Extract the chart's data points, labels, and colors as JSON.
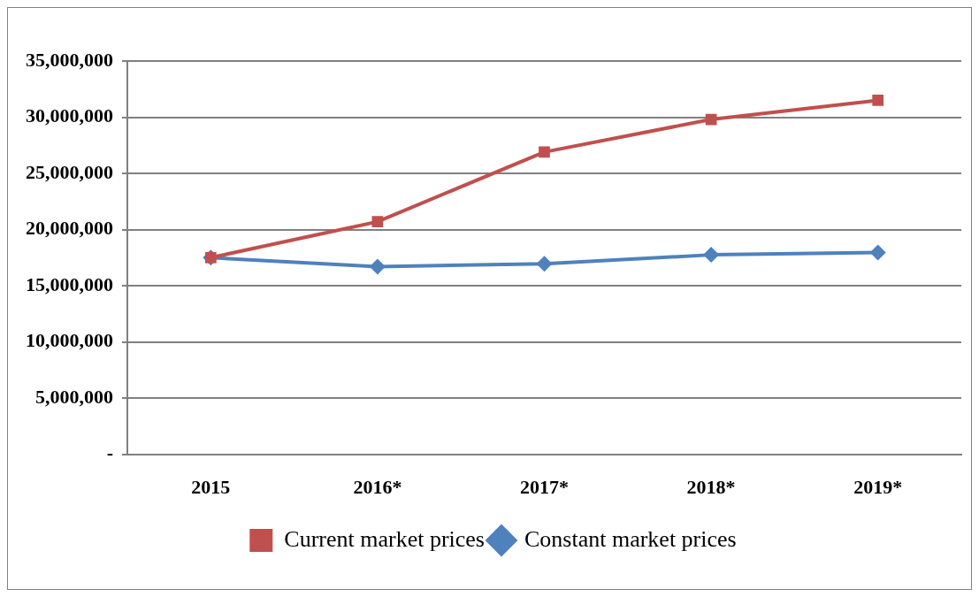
{
  "chart_data": {
    "type": "line",
    "categories": [
      "2015",
      "2016*",
      "2017*",
      "2018*",
      "2019*"
    ],
    "series": [
      {
        "name": "Current market prices",
        "color": "#c0504d",
        "values": [
          17500000,
          20700000,
          26900000,
          29800000,
          31500000
        ],
        "marker": "square"
      },
      {
        "name": "Constant market prices",
        "color": "#4f81bd",
        "values": [
          17500000,
          16700000,
          16950000,
          17750000,
          17950000
        ],
        "marker": "diamond"
      }
    ],
    "ylim": [
      0,
      35000000
    ],
    "yticks": [
      {
        "value": 0,
        "label": "-"
      },
      {
        "value": 5000000,
        "label": "5,000,000"
      },
      {
        "value": 10000000,
        "label": "10,000,000"
      },
      {
        "value": 15000000,
        "label": "15,000,000"
      },
      {
        "value": 20000000,
        "label": "20,000,000"
      },
      {
        "value": 25000000,
        "label": "25,000,000"
      },
      {
        "value": 30000000,
        "label": "30,000,000"
      },
      {
        "value": 35000000,
        "label": "35,000,000"
      }
    ],
    "grid": "y",
    "legend": "bottom"
  }
}
